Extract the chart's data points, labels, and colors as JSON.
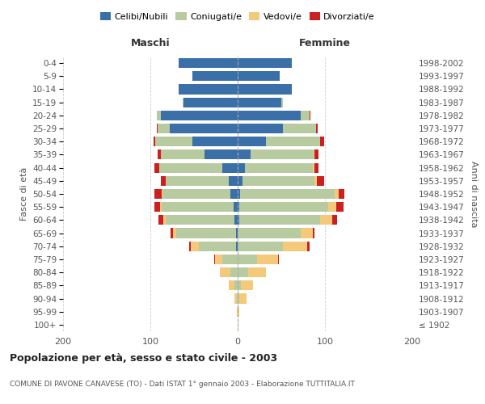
{
  "age_groups": [
    "100+",
    "95-99",
    "90-94",
    "85-89",
    "80-84",
    "75-79",
    "70-74",
    "65-69",
    "60-64",
    "55-59",
    "50-54",
    "45-49",
    "40-44",
    "35-39",
    "30-34",
    "25-29",
    "20-24",
    "15-19",
    "10-14",
    "5-9",
    "0-4"
  ],
  "birth_years": [
    "≤ 1902",
    "1903-1907",
    "1908-1912",
    "1913-1917",
    "1918-1922",
    "1923-1927",
    "1928-1932",
    "1933-1937",
    "1938-1942",
    "1943-1947",
    "1948-1952",
    "1953-1957",
    "1958-1962",
    "1963-1967",
    "1968-1972",
    "1973-1977",
    "1978-1982",
    "1983-1987",
    "1988-1992",
    "1993-1997",
    "1998-2002"
  ],
  "colors": {
    "celibe": "#3a6fa8",
    "coniugato": "#b8cba0",
    "vedovo": "#f5c97a",
    "divorziato": "#cc2020"
  },
  "maschi": {
    "celibe": [
      0,
      0,
      0,
      0,
      0,
      0,
      2,
      2,
      4,
      5,
      8,
      10,
      18,
      38,
      52,
      78,
      88,
      62,
      68,
      52,
      68
    ],
    "coniugato": [
      0,
      0,
      1,
      4,
      8,
      18,
      42,
      68,
      78,
      82,
      78,
      72,
      72,
      50,
      42,
      14,
      5,
      1,
      0,
      0,
      0
    ],
    "vedovo": [
      0,
      1,
      3,
      6,
      12,
      8,
      10,
      4,
      3,
      2,
      1,
      0,
      0,
      0,
      0,
      0,
      0,
      0,
      0,
      0,
      0
    ],
    "divorziato": [
      0,
      0,
      0,
      0,
      0,
      1,
      2,
      3,
      6,
      6,
      8,
      6,
      5,
      4,
      2,
      1,
      0,
      0,
      0,
      0,
      0
    ]
  },
  "femmine": {
    "celibe": [
      0,
      0,
      0,
      0,
      0,
      0,
      0,
      0,
      2,
      2,
      3,
      6,
      8,
      15,
      32,
      52,
      72,
      50,
      62,
      48,
      62
    ],
    "coniugato": [
      0,
      0,
      2,
      4,
      12,
      22,
      52,
      72,
      92,
      102,
      108,
      82,
      78,
      72,
      62,
      38,
      10,
      2,
      0,
      0,
      0
    ],
    "vedovo": [
      1,
      2,
      8,
      14,
      20,
      24,
      28,
      14,
      14,
      9,
      5,
      3,
      2,
      1,
      0,
      0,
      0,
      0,
      0,
      0,
      0
    ],
    "divorziato": [
      0,
      0,
      0,
      0,
      0,
      1,
      2,
      2,
      6,
      8,
      6,
      8,
      5,
      5,
      5,
      2,
      1,
      0,
      0,
      0,
      0
    ]
  },
  "xlim": 200,
  "title": "Popolazione per età, sesso e stato civile - 2003",
  "subtitle": "COMUNE DI PAVONE CANAVESE (TO) - Dati ISTAT 1° gennaio 2003 - Elaborazione TUTTITALIA.IT",
  "ylabel_left": "Fasce di età",
  "ylabel_right": "Anni di nascita",
  "xlabel_left": "Maschi",
  "xlabel_right": "Femmine",
  "legend_labels": [
    "Celibi/Nubili",
    "Coniugati/e",
    "Vedovi/e",
    "Divorziati/e"
  ],
  "bg_color": "#ffffff",
  "grid_color": "#cccccc",
  "text_color": "#555555"
}
